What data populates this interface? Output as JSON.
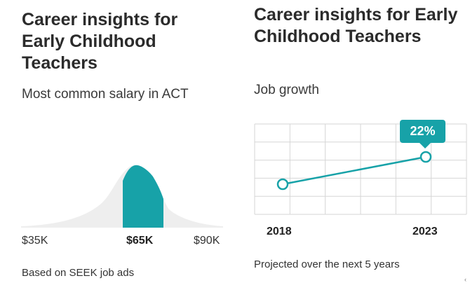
{
  "salary_panel": {
    "title": "Career insights for Early Childhood Teachers",
    "subtitle": "Most common salary in ACT",
    "footnote": "Based on SEEK job ads",
    "highlight_color": "#17a2a8",
    "curve_color": "#eeeeee"
  },
  "growth_panel": {
    "title": "Career insights for Early Childhood Teachers",
    "subtitle": "Job growth",
    "footnote": "Projected over the next 5 years",
    "badge": "22%",
    "line_color": "#17a2a8"
  },
  "corner_mark": "‹",
  "chart_data": [
    {
      "type": "area",
      "title": "Most common salary in ACT",
      "x_ticks": [
        "$35K",
        "$65K",
        "$90K"
      ],
      "x_tick_values": [
        35,
        65,
        90
      ],
      "highlight_tick": "$65K",
      "highlight_range": [
        65,
        70
      ],
      "distribution_peak": 65,
      "xlim": [
        35,
        90
      ],
      "xlabel": "",
      "ylabel": ""
    },
    {
      "type": "line",
      "title": "Job growth",
      "x": [
        "2018",
        "2023"
      ],
      "series": [
        {
          "values": [
            0,
            22
          ]
        }
      ],
      "annotation": "22%",
      "grid": true,
      "xlabel": "",
      "ylabel": ""
    }
  ]
}
